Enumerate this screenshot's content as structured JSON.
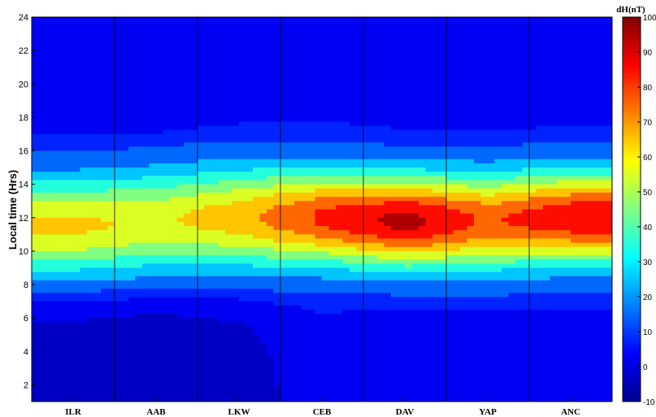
{
  "chart_data": {
    "type": "heatmap",
    "subtype": "filled-contour",
    "ylabel": "Local time (Hrs)",
    "colorbar_label": "dH(nT)",
    "categories": [
      "ILR",
      "AAB",
      "LKW",
      "CEB",
      "DAV",
      "YAP",
      "ANC"
    ],
    "y_ticks": [
      2,
      4,
      6,
      8,
      10,
      12,
      14,
      16,
      18,
      20,
      22,
      24
    ],
    "ylim": [
      1,
      24
    ],
    "colorbar_ticks": [
      -10,
      0,
      10,
      20,
      30,
      40,
      50,
      60,
      70,
      80,
      90,
      100
    ],
    "clim": [
      -10,
      100
    ],
    "colormap": "jet",
    "contour_levels": [
      -5,
      0,
      5,
      10,
      20,
      30,
      40,
      50,
      60,
      70,
      80,
      90
    ],
    "grid": "vertical lines at station positions",
    "stations_peak": [
      {
        "station": "ILR",
        "peak_hour": 11.5,
        "peak_dH": 62,
        "half_width_hrs": 3.4
      },
      {
        "station": "AAB",
        "peak_hour": 11.8,
        "peak_dH": 58,
        "half_width_hrs": 3.5
      },
      {
        "station": "LKW",
        "peak_hour": 12.0,
        "peak_dH": 66,
        "half_width_hrs": 3.5
      },
      {
        "station": "CEB",
        "peak_hour": 12.0,
        "peak_dH": 82,
        "half_width_hrs": 3.3
      },
      {
        "station": "DAV",
        "peak_hour": 11.8,
        "peak_dH": 94,
        "half_width_hrs": 3.2
      },
      {
        "station": "YAP",
        "peak_hour": 11.8,
        "peak_dH": 78,
        "half_width_hrs": 3.3
      },
      {
        "station": "ANC",
        "peak_hour": 12.0,
        "peak_dH": 88,
        "half_width_hrs": 3.2
      }
    ],
    "background_dH": [
      {
        "station": "ILR",
        "night_low": -5,
        "evening": 2
      },
      {
        "station": "AAB",
        "night_low": -6,
        "evening": 2
      },
      {
        "station": "LKW",
        "night_low": -4,
        "evening": 3
      },
      {
        "station": "CEB",
        "night_low": 2,
        "evening": 4
      },
      {
        "station": "DAV",
        "night_low": 0,
        "evening": 3
      },
      {
        "station": "YAP",
        "night_low": 1,
        "evening": 3
      },
      {
        "station": "ANC",
        "night_low": 2,
        "evening": 3
      }
    ]
  }
}
